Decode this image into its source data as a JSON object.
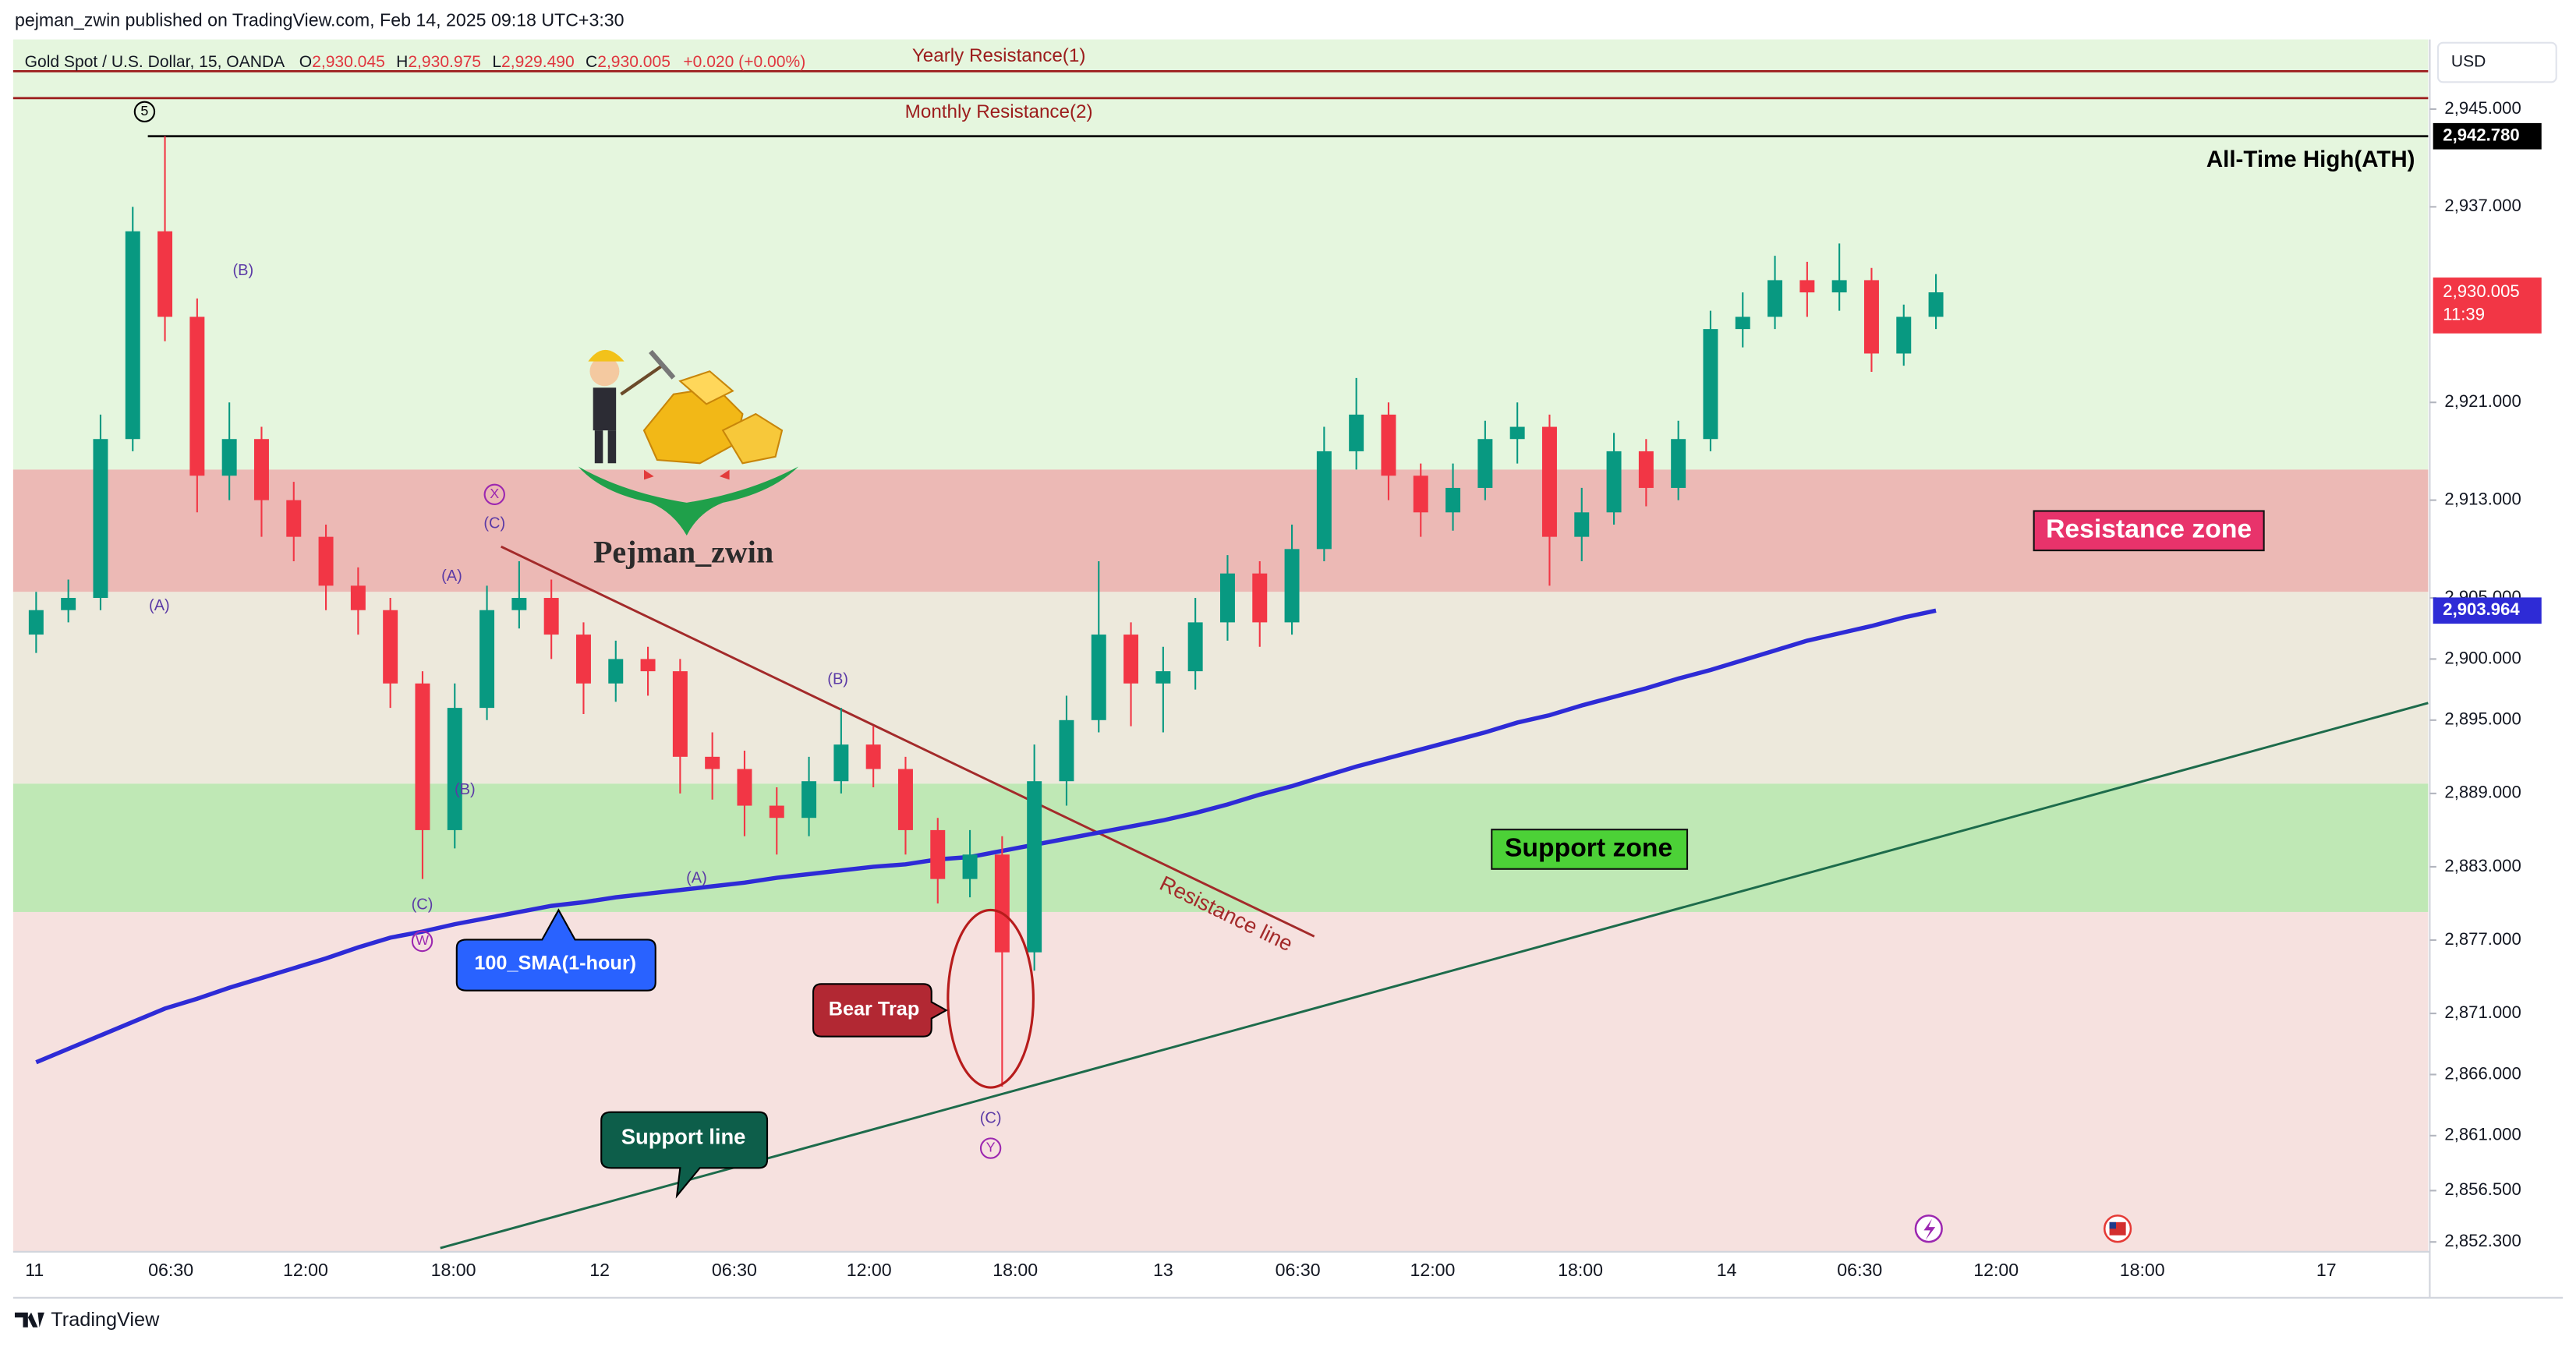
{
  "header": {
    "publisher": "pejman_zwin published on TradingView.com, Feb 14, 2025 09:18 UTC+3:30",
    "symbol": "Gold Spot / U.S. Dollar, 15, OANDA",
    "ohlc": [
      {
        "key": "O",
        "value": "2,930.045"
      },
      {
        "key": "H",
        "value": "2,930.975"
      },
      {
        "key": "L",
        "value": "2,929.490"
      },
      {
        "key": "C",
        "value": "2,930.005"
      }
    ],
    "change": "+0.020 (+0.00%)"
  },
  "chart_data": {
    "type": "candlestick",
    "up_color": "#089981",
    "down_color": "#f23645",
    "time_labels": [
      "11",
      "06:30",
      "12:00",
      "18:00",
      "12",
      "06:30",
      "12:00",
      "18:00",
      "13",
      "06:30",
      "12:00",
      "18:00",
      "14",
      "06:30",
      "12:00",
      "18:00",
      "17"
    ],
    "open": [
      2902,
      2904,
      2905,
      2918,
      2935,
      2928,
      2915,
      2918,
      2913,
      2910,
      2906,
      2904,
      2898,
      2886,
      2896,
      2904,
      2905,
      2902,
      2898,
      2900,
      2899,
      2892,
      2891,
      2888,
      2887,
      2890,
      2893,
      2891,
      2886,
      2882,
      2884,
      2876,
      2890,
      2895,
      2902,
      2898,
      2899,
      2903,
      2907,
      2903,
      2909,
      2917,
      2920,
      2915,
      2912,
      2914,
      2918,
      2919,
      2910,
      2912,
      2917,
      2914,
      2918,
      2927,
      2928,
      2931,
      2930,
      2931,
      2925,
      2928
    ],
    "high": [
      2905.5,
      2906.5,
      2920,
      2937,
      2942.78,
      2929.5,
      2921,
      2919,
      2914.5,
      2911,
      2907.5,
      2905,
      2899,
      2898,
      2906,
      2908,
      2906.5,
      2903,
      2901.5,
      2901,
      2900,
      2894,
      2892.5,
      2889.5,
      2892,
      2896,
      2894.5,
      2892,
      2887,
      2886,
      2885.5,
      2893,
      2897,
      2908,
      2903,
      2901,
      2905,
      2908.5,
      2908,
      2911,
      2919,
      2923,
      2921,
      2916,
      2916,
      2919.5,
      2921,
      2920,
      2914,
      2918.5,
      2918,
      2919.5,
      2928.5,
      2930,
      2933,
      2932.5,
      2934,
      2932,
      2929,
      2931.5
    ],
    "low": [
      2900.5,
      2903,
      2904,
      2917,
      2926,
      2912,
      2913,
      2910,
      2908,
      2904,
      2902,
      2896,
      2882,
      2884.5,
      2895,
      2902.5,
      2900,
      2895.5,
      2896.5,
      2897,
      2889,
      2888.5,
      2885.5,
      2884,
      2885.5,
      2889,
      2889.5,
      2884,
      2880,
      2880.5,
      2865,
      2874.5,
      2888,
      2894,
      2894.5,
      2894,
      2897.5,
      2901.5,
      2901,
      2902,
      2908,
      2915.5,
      2913,
      2910,
      2910.5,
      2913,
      2916,
      2906,
      2908,
      2911,
      2912.5,
      2913,
      2917,
      2925.5,
      2927,
      2928,
      2928.5,
      2923.5,
      2924,
      2927
    ],
    "close": [
      2904,
      2905,
      2918,
      2935,
      2928,
      2915,
      2918,
      2913,
      2910,
      2906,
      2904,
      2898,
      2886,
      2896,
      2904,
      2905,
      2902,
      2898,
      2900,
      2899,
      2892,
      2891,
      2888,
      2887,
      2890,
      2893,
      2891,
      2886,
      2882,
      2884,
      2876,
      2890,
      2895,
      2902,
      2898,
      2899,
      2903,
      2907,
      2903,
      2909,
      2917,
      2920,
      2915,
      2912,
      2914,
      2918,
      2919,
      2910,
      2912,
      2917,
      2914,
      2918,
      2927,
      2928,
      2931,
      2930,
      2931,
      2925,
      2928,
      2930.005
    ],
    "sma": {
      "name": "100_SMA(1-hour)",
      "color": "#2e2bd6",
      "values": [
        2867.0,
        2868.1,
        2869.2,
        2870.3,
        2871.4,
        2872.2,
        2873.1,
        2873.9,
        2874.7,
        2875.5,
        2876.4,
        2877.2,
        2877.7,
        2878.3,
        2878.8,
        2879.3,
        2879.8,
        2880.1,
        2880.5,
        2880.8,
        2881.1,
        2881.4,
        2881.7,
        2882.1,
        2882.4,
        2882.7,
        2883.0,
        2883.2,
        2883.6,
        2883.8,
        2884.3,
        2884.8,
        2885.3,
        2885.8,
        2886.3,
        2886.8,
        2887.4,
        2888.1,
        2888.9,
        2889.6,
        2890.4,
        2891.2,
        2891.9,
        2892.6,
        2893.3,
        2894.0,
        2894.8,
        2895.4,
        2896.2,
        2896.9,
        2897.6,
        2898.4,
        2899.1,
        2899.9,
        2900.7,
        2901.5,
        2902.1,
        2902.7,
        2903.4,
        2903.964
      ]
    },
    "ylim": [
      2851.5,
      2950.7
    ],
    "yticks": [
      {
        "value": 2945,
        "label": "2,945.000"
      },
      {
        "value": 2937,
        "label": "2,937.000"
      },
      {
        "value": 2921,
        "label": "2,921.000"
      },
      {
        "value": 2913,
        "label": "2,913.000"
      },
      {
        "value": 2905,
        "label": "2,905.000"
      },
      {
        "value": 2900,
        "label": "2,900.000"
      },
      {
        "value": 2895,
        "label": "2,895.000"
      },
      {
        "value": 2889,
        "label": "2,889.000"
      },
      {
        "value": 2883,
        "label": "2,883.000"
      },
      {
        "value": 2877,
        "label": "2,877.000"
      },
      {
        "value": 2871,
        "label": "2,871.000"
      },
      {
        "value": 2866,
        "label": "2,866.000"
      },
      {
        "value": 2861,
        "label": "2,861.000"
      },
      {
        "value": 2856.5,
        "label": "2,856.500"
      },
      {
        "value": 2852.3,
        "label": "2,852.300"
      }
    ],
    "currency": "USD",
    "ath": {
      "value": 2942.78,
      "label": "2,942.780",
      "text": "All-Time High(ATH)"
    },
    "last_price": {
      "value": 2930.005,
      "label": "2,930.005",
      "countdown": "11:39"
    },
    "sma_last": {
      "value": 2903.964,
      "label": "2,903.964"
    },
    "levels": [
      {
        "name": "Yearly Resistance(1)",
        "value": 2948.1,
        "color": "#9c1c1c"
      },
      {
        "name": "Monthly Resistance(2)",
        "value": 2945.9,
        "color": "#9c1c1c"
      }
    ],
    "zones": [
      {
        "name": "Resistance zone",
        "from": 2905.5,
        "to": 2915.5,
        "color": "#ecb9b5"
      },
      {
        "name": "Support zone",
        "from": 2879.3,
        "to": 2889.8,
        "color": "#bfe8b5"
      }
    ],
    "trendlines": [
      {
        "name": "Resistance line",
        "from": 2909.2,
        "to": 2877.3,
        "color": "#a32a2a"
      },
      {
        "name": "Support line",
        "from": 2851.8,
        "to": 2896.4,
        "color": "#1d6b4b"
      }
    ],
    "bear_trap": "Bear Trap",
    "watermark": "Pejman_zwin",
    "wave_labels": [
      "5",
      "(B)",
      "X",
      "(C)",
      "(A)",
      "(A)",
      "(B)",
      "(C)",
      "W",
      "(A)",
      "(B)",
      "(C)",
      "Y"
    ]
  },
  "footer": "TradingView"
}
